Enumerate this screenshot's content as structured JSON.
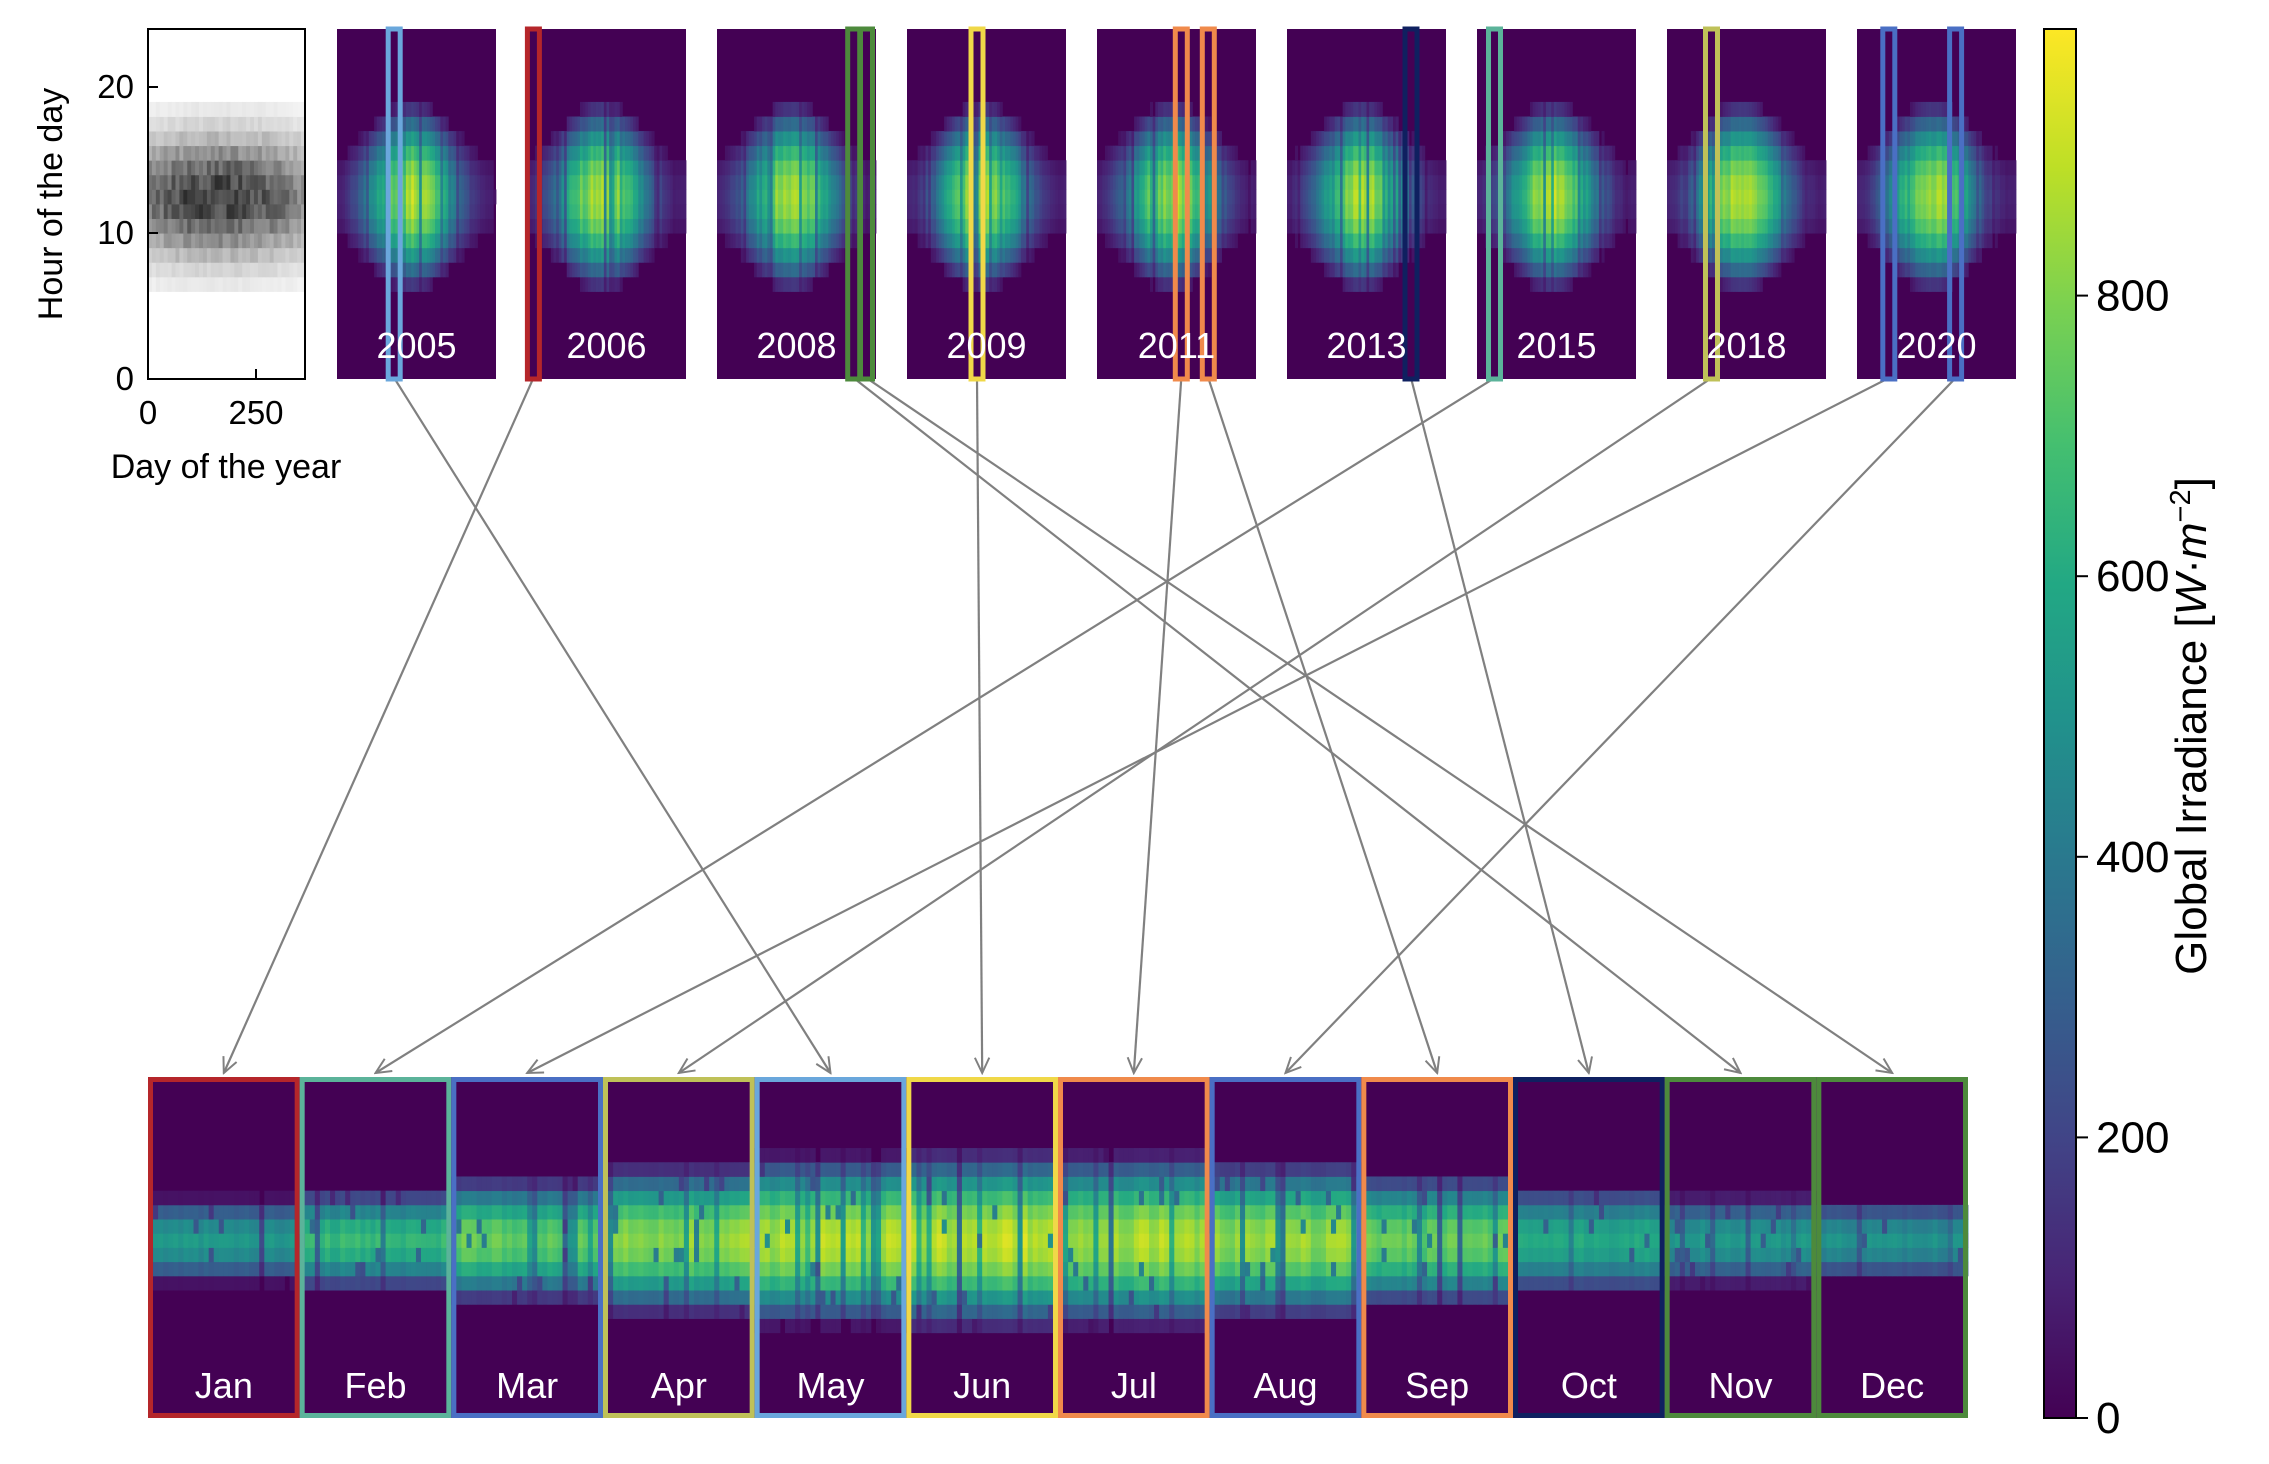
{
  "chart_data": [
    {
      "type": "heatmap",
      "name": "annual-overview",
      "xlabel": "Day of the year",
      "ylabel": "Hour of the day",
      "xlim": [
        0,
        365
      ],
      "ylim": [
        0,
        24
      ],
      "xticks": [
        0,
        250
      ],
      "yticks": [
        0,
        10,
        20
      ],
      "colormap": "greys"
    },
    {
      "type": "heatmap",
      "name": "year-panels",
      "panels": [
        {
          "label": "2005",
          "highlights": [
            {
              "month": "May",
              "pos": 0.36
            }
          ]
        },
        {
          "label": "2006",
          "highlights": [
            {
              "month": "Jan",
              "pos": 0.04
            }
          ]
        },
        {
          "label": "2008",
          "highlights": [
            {
              "month": "Nov",
              "pos": 0.86
            },
            {
              "month": "Dec",
              "pos": 0.94
            }
          ]
        },
        {
          "label": "2009",
          "highlights": [
            {
              "month": "Jun",
              "pos": 0.44
            }
          ]
        },
        {
          "label": "2011",
          "highlights": [
            {
              "month": "Jul",
              "pos": 0.53
            },
            {
              "month": "Sep",
              "pos": 0.7
            }
          ]
        },
        {
          "label": "2013",
          "highlights": [
            {
              "month": "Oct",
              "pos": 0.78
            }
          ]
        },
        {
          "label": "2015",
          "highlights": [
            {
              "month": "Feb",
              "pos": 0.11
            }
          ]
        },
        {
          "label": "2018",
          "highlights": [
            {
              "month": "Apr",
              "pos": 0.28
            }
          ]
        },
        {
          "label": "2020",
          "highlights": [
            {
              "month": "Mar",
              "pos": 0.2
            },
            {
              "month": "Aug",
              "pos": 0.62
            }
          ]
        }
      ]
    },
    {
      "type": "heatmap",
      "name": "month-panels",
      "months": [
        "Jan",
        "Feb",
        "Mar",
        "Apr",
        "May",
        "Jun",
        "Jul",
        "Aug",
        "Sep",
        "Oct",
        "Nov",
        "Dec"
      ],
      "source_year": [
        "2006",
        "2015",
        "2020",
        "2018",
        "2005",
        "2009",
        "2011",
        "2020",
        "2011",
        "2013",
        "2008",
        "2008"
      ],
      "colors": [
        "#b5262a",
        "#5bb39a",
        "#4a6fc4",
        "#bfc158",
        "#6aa7dc",
        "#f0d848",
        "#f08a4b",
        "#4a6fc4",
        "#f08a4b",
        "#0f2060",
        "#4d8a3c",
        "#4d8a3c"
      ],
      "peak_irradiance": [
        560,
        700,
        800,
        880,
        930,
        950,
        920,
        880,
        800,
        640,
        560,
        540
      ]
    },
    {
      "type": "colorbar",
      "name": "irradiance-colorbar",
      "label": "Global Irradiance [W·m⁻²]",
      "label_main": "Global Irradiance [",
      "label_unit_w": "W",
      "label_unit_dot": "·",
      "label_unit_m": "m",
      "label_unit_exp": "−2",
      "label_close": "]",
      "ticks": [
        0,
        200,
        400,
        600,
        800
      ],
      "range": [
        0,
        990
      ],
      "colormap": "viridis"
    }
  ]
}
